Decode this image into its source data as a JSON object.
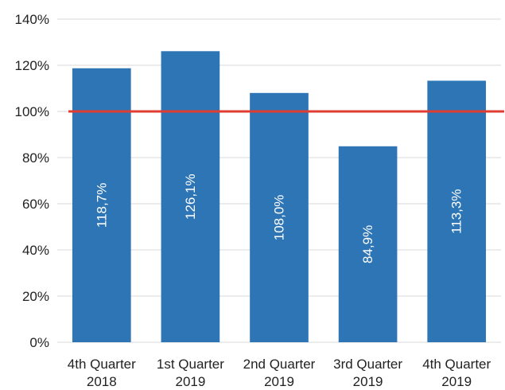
{
  "chart_data": {
    "type": "bar",
    "categories": [
      [
        "4th Quarter",
        "2018"
      ],
      [
        "1st Quarter",
        "2019"
      ],
      [
        "2nd Quarter",
        "2019"
      ],
      [
        "3rd Quarter",
        "2019"
      ],
      [
        "4th Quarter",
        "2019"
      ]
    ],
    "values": [
      118.7,
      126.1,
      108.0,
      84.9,
      113.3
    ],
    "data_labels": [
      "118,7%",
      "126,1%",
      "108,0%",
      "84,9%",
      "113,3%"
    ],
    "y_ticks": [
      0,
      20,
      40,
      60,
      80,
      100,
      120,
      140
    ],
    "y_tick_labels": [
      "0%",
      "20%",
      "40%",
      "60%",
      "80%",
      "100%",
      "120%",
      "140%"
    ],
    "ylim": [
      0,
      140
    ],
    "reference_line": {
      "value": 100,
      "color": "#e03c31"
    },
    "bar_color": "#2e75b6",
    "grid": true,
    "title": "",
    "xlabel": "",
    "ylabel": ""
  }
}
